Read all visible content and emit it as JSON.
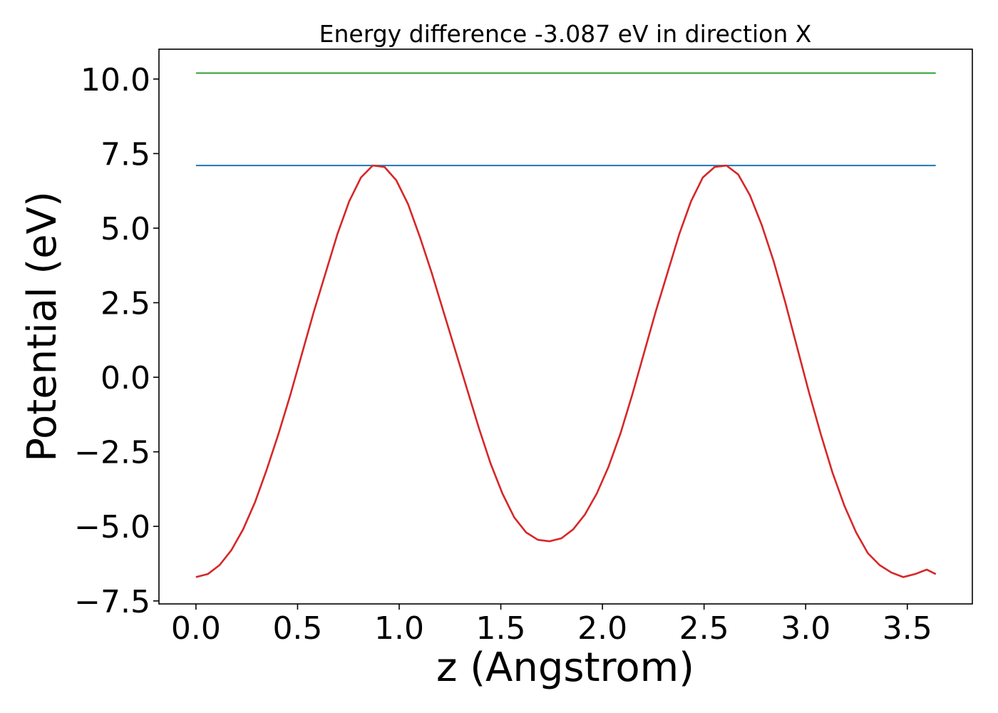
{
  "chart_data": {
    "type": "line",
    "title": "Energy difference -3.087 eV in direction X",
    "xlabel": "z (Angstrom)",
    "ylabel": "Potential (eV)",
    "xlim": [
      -0.182,
      3.82
    ],
    "ylim": [
      -7.6,
      11.0
    ],
    "x_ticks": [
      0.0,
      0.5,
      1.0,
      1.5,
      2.0,
      2.5,
      3.0,
      3.5
    ],
    "x_tick_labels": [
      "0.0",
      "0.5",
      "1.0",
      "1.5",
      "2.0",
      "2.5",
      "3.0",
      "3.5"
    ],
    "y_ticks": [
      10.0,
      7.5,
      5.0,
      2.5,
      0.0,
      -2.5,
      -5.0,
      -7.5
    ],
    "y_tick_labels": [
      "10.0",
      "7.5",
      "5.0",
      "2.5",
      "0.0",
      "−2.5",
      "−5.0",
      "−7.5"
    ],
    "grid": false,
    "series": [
      {
        "name": "green-level",
        "color": "#2ca02c",
        "x": [
          0.0,
          3.64
        ],
        "y": [
          10.2,
          10.2
        ]
      },
      {
        "name": "blue-level",
        "color": "#1f77b4",
        "x": [
          0.0,
          3.64
        ],
        "y": [
          7.1,
          7.1
        ]
      },
      {
        "name": "potential",
        "color": "#d62728",
        "x": [
          0.0,
          0.058,
          0.116,
          0.174,
          0.232,
          0.29,
          0.348,
          0.406,
          0.464,
          0.522,
          0.58,
          0.638,
          0.696,
          0.754,
          0.812,
          0.87,
          0.928,
          0.986,
          1.044,
          1.102,
          1.16,
          1.218,
          1.276,
          1.334,
          1.392,
          1.45,
          1.508,
          1.566,
          1.624,
          1.682,
          1.74,
          1.798,
          1.856,
          1.914,
          1.972,
          2.03,
          2.088,
          2.146,
          2.204,
          2.262,
          2.32,
          2.378,
          2.436,
          2.494,
          2.552,
          2.61,
          2.668,
          2.726,
          2.784,
          2.842,
          2.9,
          2.958,
          3.016,
          3.074,
          3.132,
          3.19,
          3.248,
          3.306,
          3.364,
          3.422,
          3.48,
          3.538,
          3.596,
          3.64
        ],
        "y": [
          -6.7,
          -6.6,
          -6.3,
          -5.8,
          -5.1,
          -4.2,
          -3.1,
          -1.9,
          -0.6,
          0.8,
          2.2,
          3.5,
          4.8,
          5.9,
          6.7,
          7.1,
          7.05,
          6.6,
          5.8,
          4.7,
          3.5,
          2.2,
          0.9,
          -0.4,
          -1.7,
          -2.9,
          -3.9,
          -4.7,
          -5.2,
          -5.45,
          -5.5,
          -5.4,
          -5.1,
          -4.6,
          -3.9,
          -3.0,
          -1.9,
          -0.6,
          0.8,
          2.2,
          3.5,
          4.8,
          5.9,
          6.7,
          7.05,
          7.1,
          6.8,
          6.1,
          5.1,
          3.9,
          2.5,
          1.0,
          -0.5,
          -1.9,
          -3.2,
          -4.3,
          -5.2,
          -5.9,
          -6.3,
          -6.55,
          -6.7,
          -6.6,
          -6.45,
          -6.6
        ]
      }
    ]
  }
}
